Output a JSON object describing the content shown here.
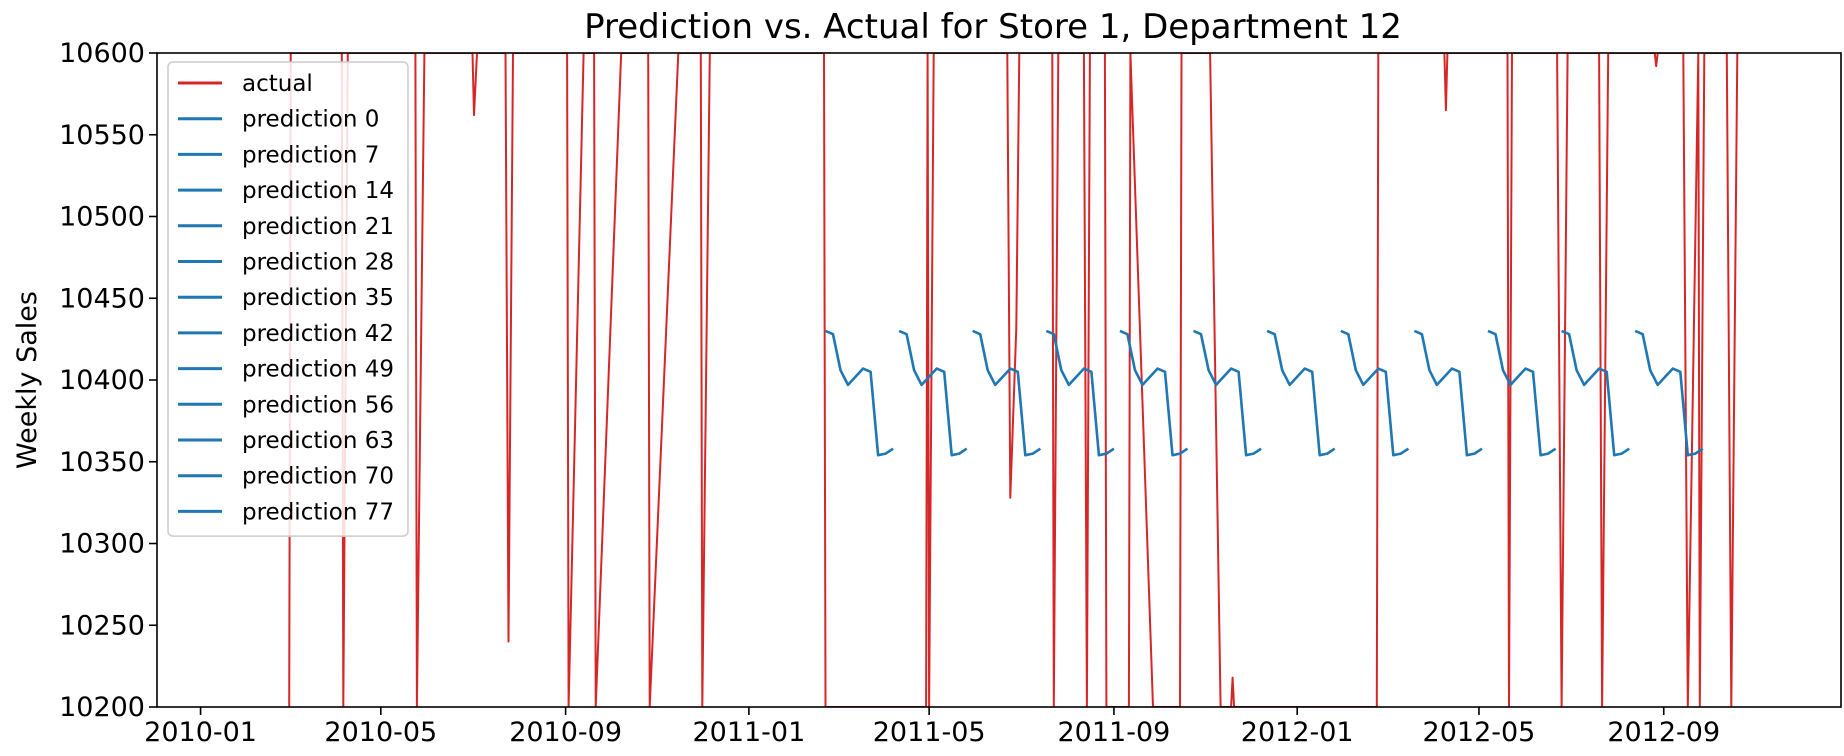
{
  "chart_data": {
    "type": "line",
    "title": "Prediction vs. Actual for Store 1, Department 12",
    "xlabel": "",
    "ylabel": "Weekly Sales",
    "xlim": [
      "2009-12-03",
      "2012-12-28"
    ],
    "ylim": [
      10200,
      10600
    ],
    "grid": false,
    "legend_placement": "upper-left",
    "x_ticks": [
      "2010-01",
      "2010-05",
      "2010-09",
      "2011-01",
      "2011-05",
      "2011-09",
      "2012-01",
      "2012-05",
      "2012-09"
    ],
    "y_ticks": [
      10200,
      10250,
      10300,
      10350,
      10400,
      10450,
      10500,
      10550,
      10600
    ],
    "colors": {
      "actual": "#d62728",
      "prediction": "#1f77b4"
    },
    "actual": {
      "name": "actual",
      "points": [
        [
          "2010-03-01",
          10200
        ],
        [
          "2010-03-02",
          10600
        ],
        [
          "2010-04-05",
          10600
        ],
        [
          "2010-04-06",
          10200
        ],
        [
          "2010-04-09",
          10600
        ],
        [
          "2010-05-24",
          10600
        ],
        [
          "2010-05-25",
          10200
        ],
        [
          "2010-05-30",
          10600
        ],
        [
          "2010-07-01",
          10600
        ],
        [
          "2010-07-02",
          10562
        ],
        [
          "2010-07-04",
          10600
        ],
        [
          "2010-07-23",
          10600
        ],
        [
          "2010-07-25",
          10240
        ],
        [
          "2010-07-28",
          10600
        ],
        [
          "2010-09-02",
          10600
        ],
        [
          "2010-09-03",
          10200
        ],
        [
          "2010-09-13",
          10600
        ],
        [
          "2010-09-20",
          10600
        ],
        [
          "2010-09-21",
          10200
        ],
        [
          "2010-10-08",
          10600
        ],
        [
          "2010-10-26",
          10600
        ],
        [
          "2010-10-27",
          10200
        ],
        [
          "2010-11-15",
          10600
        ],
        [
          "2010-11-30",
          10600
        ],
        [
          "2010-12-01",
          10200
        ],
        [
          "2010-12-06",
          10600
        ],
        [
          "2011-02-20",
          10600
        ],
        [
          "2011-02-21",
          10200
        ],
        [
          "2011-04-29",
          10200
        ],
        [
          "2011-04-30",
          10600
        ],
        [
          "2011-05-01",
          10200
        ],
        [
          "2011-05-04",
          10600
        ],
        [
          "2011-06-22",
          10600
        ],
        [
          "2011-06-24",
          10328
        ],
        [
          "2011-06-28",
          10432
        ],
        [
          "2011-06-30",
          10600
        ],
        [
          "2011-07-22",
          10600
        ],
        [
          "2011-07-23",
          10200
        ],
        [
          "2011-07-26",
          10600
        ],
        [
          "2011-08-12",
          10600
        ],
        [
          "2011-08-14",
          10200
        ],
        [
          "2011-08-16",
          10600
        ],
        [
          "2011-08-26",
          10600
        ],
        [
          "2011-08-27",
          10200
        ],
        [
          "2011-09-11",
          10200
        ],
        [
          "2011-09-12",
          10600
        ],
        [
          "2011-09-27",
          10200
        ],
        [
          "2011-10-15",
          10200
        ],
        [
          "2011-10-16",
          10600
        ],
        [
          "2011-11-04",
          10600
        ],
        [
          "2011-11-11",
          10200
        ],
        [
          "2011-11-18",
          10200
        ],
        [
          "2011-11-19",
          10218
        ],
        [
          "2011-11-20",
          10200
        ],
        [
          "2012-02-23",
          10200
        ],
        [
          "2012-02-24",
          10600
        ],
        [
          "2012-04-08",
          10600
        ],
        [
          "2012-04-09",
          10565
        ],
        [
          "2012-04-10",
          10600
        ],
        [
          "2012-05-20",
          10600
        ],
        [
          "2012-05-21",
          10200
        ],
        [
          "2012-05-23",
          10600
        ],
        [
          "2012-06-22",
          10600
        ],
        [
          "2012-06-25",
          10200
        ],
        [
          "2012-06-29",
          10600
        ],
        [
          "2012-07-20",
          10600
        ],
        [
          "2012-07-22",
          10200
        ],
        [
          "2012-07-26",
          10600
        ],
        [
          "2012-08-26",
          10600
        ],
        [
          "2012-08-27",
          10592
        ],
        [
          "2012-08-28",
          10600
        ],
        [
          "2012-09-14",
          10600
        ],
        [
          "2012-09-17",
          10200
        ],
        [
          "2012-09-24",
          10600
        ],
        [
          "2012-09-25",
          10200
        ],
        [
          "2012-09-28",
          10600
        ],
        [
          "2012-10-13",
          10600
        ],
        [
          "2012-10-16",
          10200
        ],
        [
          "2012-10-20",
          10600
        ]
      ]
    },
    "prediction_shape": [
      10430,
      10428,
      10406,
      10397,
      10402,
      10407,
      10405,
      10354,
      10355,
      10358
    ],
    "series": [
      {
        "name": "prediction 0",
        "x_start": "2011-02-21",
        "shape_offset": 0
      },
      {
        "name": "prediction 7",
        "x_start": "2011-04-11",
        "shape_offset": 0
      },
      {
        "name": "prediction 14",
        "x_start": "2011-05-30",
        "shape_offset": 0
      },
      {
        "name": "prediction 21",
        "x_start": "2011-07-18",
        "shape_offset": 0
      },
      {
        "name": "prediction 28",
        "x_start": "2011-09-05",
        "shape_offset": 0
      },
      {
        "name": "prediction 35",
        "x_start": "2011-10-24",
        "shape_offset": 0
      },
      {
        "name": "prediction 42",
        "x_start": "2011-12-12",
        "shape_offset": 0
      },
      {
        "name": "prediction 49",
        "x_start": "2012-01-30",
        "shape_offset": 0
      },
      {
        "name": "prediction 56",
        "x_start": "2012-03-19",
        "shape_offset": 0
      },
      {
        "name": "prediction 63",
        "x_start": "2012-05-07",
        "shape_offset": 0
      },
      {
        "name": "prediction 70",
        "x_start": "2012-06-25",
        "shape_offset": 0
      },
      {
        "name": "prediction 77",
        "x_start": "2012-08-13",
        "shape_offset": 0
      }
    ],
    "step_days": 5
  }
}
